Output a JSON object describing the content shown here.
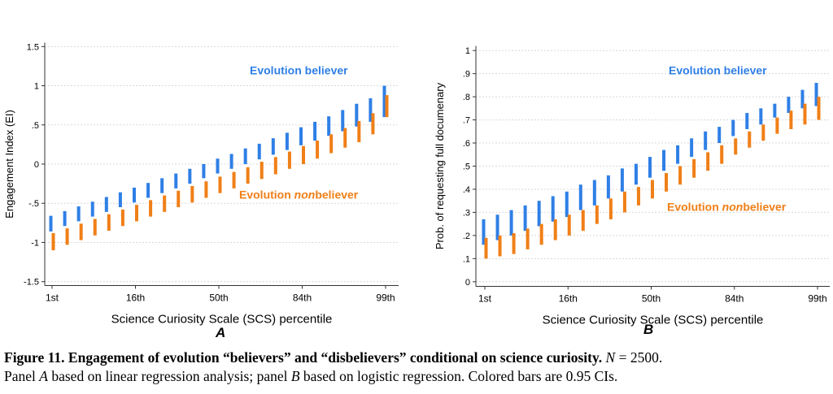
{
  "chart_data": [
    {
      "panel": "A",
      "type": "error_bar",
      "xlabel": "Science Curiosity Scale (SCS) percentile",
      "ylabel": "Engagement Index (EI)",
      "xticks": [
        "1st",
        "16th",
        "50th",
        "84th",
        "99th"
      ],
      "yticks": [
        "-1.5",
        "-1",
        "-.5",
        "0",
        ".5",
        "1",
        "1.5"
      ],
      "ylim": [
        -1.55,
        1.55
      ],
      "grid": "horizontal dashed",
      "x": [
        1,
        2,
        3,
        4,
        5,
        6,
        7,
        8,
        9,
        10,
        11,
        12,
        13,
        14,
        15,
        16,
        17,
        18,
        19,
        20,
        21,
        22,
        23,
        24,
        25
      ],
      "series": [
        {
          "name": "Evolution believer",
          "color": "#2f7fe6",
          "low": [
            -0.86,
            -0.79,
            -0.73,
            -0.67,
            -0.61,
            -0.55,
            -0.49,
            -0.43,
            -0.37,
            -0.31,
            -0.25,
            -0.18,
            -0.12,
            -0.06,
            0.0,
            0.06,
            0.12,
            0.18,
            0.24,
            0.3,
            0.36,
            0.42,
            0.48,
            0.54,
            0.6
          ],
          "high": [
            -0.66,
            -0.6,
            -0.54,
            -0.48,
            -0.42,
            -0.36,
            -0.3,
            -0.24,
            -0.18,
            -0.12,
            -0.06,
            0.0,
            0.07,
            0.13,
            0.2,
            0.26,
            0.33,
            0.4,
            0.47,
            0.54,
            0.61,
            0.69,
            0.77,
            0.84,
            1.0
          ]
        },
        {
          "name": "Evolution nonbeliever",
          "color": "#f07f17",
          "low": [
            -1.1,
            -1.03,
            -0.97,
            -0.91,
            -0.85,
            -0.79,
            -0.73,
            -0.67,
            -0.61,
            -0.55,
            -0.49,
            -0.43,
            -0.37,
            -0.31,
            -0.25,
            -0.19,
            -0.13,
            -0.06,
            0.0,
            0.07,
            0.14,
            0.21,
            0.28,
            0.38,
            0.6
          ],
          "high": [
            -0.88,
            -0.82,
            -0.76,
            -0.7,
            -0.64,
            -0.58,
            -0.52,
            -0.46,
            -0.4,
            -0.34,
            -0.28,
            -0.22,
            -0.16,
            -0.1,
            -0.04,
            0.03,
            0.09,
            0.16,
            0.23,
            0.3,
            0.38,
            0.46,
            0.55,
            0.65,
            0.88
          ]
        }
      ],
      "annotations": [
        {
          "text_parts": [
            "Evolution believer"
          ],
          "italic_part": -1,
          "color": "#2f7fe6",
          "series": 0
        },
        {
          "text_parts": [
            "Evolution ",
            "non",
            "believer"
          ],
          "italic_part": 1,
          "color": "#f07f17",
          "series": 1
        }
      ],
      "panel_label": "A"
    },
    {
      "panel": "B",
      "type": "error_bar",
      "xlabel": "Science Curiosity Scale (SCS) percentile",
      "ylabel": "Prob. of requesting full documenary",
      "xticks": [
        "1st",
        "16th",
        "50th",
        "84th",
        "99th"
      ],
      "yticks": [
        "0",
        ".1",
        ".2",
        ".3",
        ".4",
        ".5",
        ".6",
        ".7",
        ".8",
        ".9",
        "1"
      ],
      "ylim": [
        -0.02,
        1.02
      ],
      "grid": "horizontal dashed",
      "x": [
        1,
        2,
        3,
        4,
        5,
        6,
        7,
        8,
        9,
        10,
        11,
        12,
        13,
        14,
        15,
        16,
        17,
        18,
        19,
        20,
        21,
        22,
        23,
        24,
        25
      ],
      "series": [
        {
          "name": "Evolution believer",
          "color": "#2f7fe6",
          "low": [
            0.16,
            0.18,
            0.2,
            0.22,
            0.24,
            0.26,
            0.28,
            0.31,
            0.33,
            0.36,
            0.39,
            0.42,
            0.45,
            0.48,
            0.51,
            0.54,
            0.57,
            0.6,
            0.63,
            0.66,
            0.68,
            0.71,
            0.73,
            0.75,
            0.76
          ],
          "high": [
            0.27,
            0.29,
            0.31,
            0.33,
            0.35,
            0.37,
            0.39,
            0.42,
            0.44,
            0.46,
            0.49,
            0.51,
            0.54,
            0.57,
            0.59,
            0.62,
            0.65,
            0.67,
            0.7,
            0.73,
            0.75,
            0.77,
            0.8,
            0.83,
            0.86
          ]
        },
        {
          "name": "Evolution nonbeliever",
          "color": "#f07f17",
          "low": [
            0.1,
            0.11,
            0.12,
            0.14,
            0.16,
            0.18,
            0.2,
            0.22,
            0.25,
            0.27,
            0.3,
            0.33,
            0.36,
            0.39,
            0.42,
            0.45,
            0.48,
            0.51,
            0.55,
            0.58,
            0.61,
            0.64,
            0.66,
            0.68,
            0.7
          ],
          "high": [
            0.19,
            0.2,
            0.21,
            0.23,
            0.25,
            0.27,
            0.29,
            0.31,
            0.33,
            0.36,
            0.39,
            0.41,
            0.44,
            0.47,
            0.5,
            0.53,
            0.56,
            0.59,
            0.62,
            0.65,
            0.68,
            0.71,
            0.74,
            0.77,
            0.8
          ]
        }
      ],
      "annotations": [
        {
          "text_parts": [
            "Evolution believer"
          ],
          "italic_part": -1,
          "color": "#2f7fe6",
          "series": 0
        },
        {
          "text_parts": [
            "Evolution ",
            "non",
            "believer"
          ],
          "italic_part": 1,
          "color": "#f07f17",
          "series": 1
        }
      ],
      "panel_label": "B"
    }
  ],
  "caption": {
    "bold": "Figure 11. Engagement of evolution “believers” and “disbelievers” conditional on science curiosity.",
    "n_prefix": " ",
    "n_symbol": "N",
    "n_value": " = 2500.",
    "line2_a": "Panel ",
    "panel_a": "A",
    "line2_b": " based on linear regression analysis; panel ",
    "panel_b": "B",
    "line2_c": " based on logistic regression. Colored bars are 0.95 CIs."
  }
}
